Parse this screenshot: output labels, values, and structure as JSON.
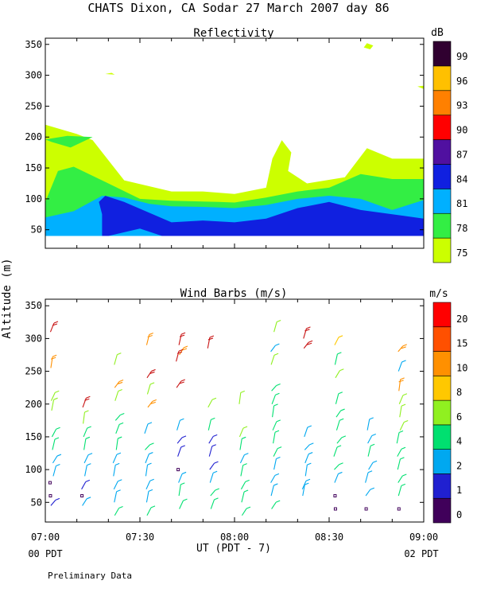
{
  "page": {
    "title": "CHATS Dixon, CA   Sodar   27 March 2007   day  86",
    "shared_ylabel": "Altitude (m)",
    "xlabel": "UT  (PDT - 7)",
    "start_local": "00 PDT",
    "end_local": "02 PDT",
    "footer": "Preliminary Data"
  },
  "chart_data": [
    {
      "type": "filled-contour",
      "title": "Reflectivity",
      "ylabel": "Altitude (m)",
      "xlabel": "UT  (PDT - 7)",
      "x_ticks": [
        "07:00",
        "07:30",
        "08:00",
        "08:30",
        "09:00"
      ],
      "x_range": [
        "07:00",
        "09:00"
      ],
      "ylim": [
        20,
        360
      ],
      "y_ticks": [
        50,
        100,
        150,
        200,
        250,
        300,
        350
      ],
      "colorbar": {
        "label": "dB",
        "levels": [
          75,
          78,
          81,
          84,
          87,
          90,
          93,
          96,
          99
        ],
        "colors": [
          "#ccff00",
          "#33ee44",
          "#00b0ff",
          "#1020e0",
          "#5010a0",
          "#ff0000",
          "#ff8000",
          "#ffc000",
          "#300030"
        ]
      },
      "contours": [
        {
          "level": 75,
          "color": "#ccff00",
          "points": [
            [
              "07:00",
              40
            ],
            [
              "07:00",
              220
            ],
            [
              "07:10",
              205
            ],
            [
              "07:15",
              195
            ],
            [
              "07:25",
              130
            ],
            [
              "07:40",
              112
            ],
            [
              "07:50",
              112
            ],
            [
              "08:00",
              108
            ],
            [
              "08:10",
              118
            ],
            [
              "08:12",
              165
            ],
            [
              "08:15",
              195
            ],
            [
              "08:18",
              175
            ],
            [
              "08:17",
              145
            ],
            [
              "08:23",
              125
            ],
            [
              "08:35",
              135
            ],
            [
              "08:42",
              182
            ],
            [
              "08:50",
              165
            ],
            [
              "09:00",
              165
            ],
            [
              "09:00",
              40
            ]
          ]
        },
        {
          "level": 75,
          "color": "#ccff00",
          "points": [
            [
              "08:41",
              345
            ],
            [
              "08:42",
              352
            ],
            [
              "08:44",
              348
            ],
            [
              "08:43",
              342
            ]
          ]
        },
        {
          "level": 75,
          "color": "#ccff00",
          "points": [
            [
              "08:58",
              282
            ],
            [
              "09:00",
              283
            ],
            [
              "09:00",
              278
            ]
          ]
        },
        {
          "level": 75,
          "color": "#ccff00",
          "points": [
            [
              "07:19",
              302
            ],
            [
              "07:21",
              304
            ],
            [
              "07:22",
              301
            ]
          ]
        },
        {
          "level": 78,
          "color": "#33ee44",
          "points": [
            [
              "07:00",
              40
            ],
            [
              "07:00",
              95
            ],
            [
              "07:04",
              145
            ],
            [
              "07:09",
              152
            ],
            [
              "07:20",
              125
            ],
            [
              "07:30",
              100
            ],
            [
              "07:40",
              97
            ],
            [
              "07:55",
              95
            ],
            [
              "08:00",
              94
            ],
            [
              "08:10",
              102
            ],
            [
              "08:20",
              112
            ],
            [
              "08:30",
              118
            ],
            [
              "08:40",
              140
            ],
            [
              "08:50",
              132
            ],
            [
              "09:00",
              132
            ],
            [
              "09:00",
              40
            ]
          ]
        },
        {
          "level": 78,
          "color": "#33ee44",
          "points": [
            [
              "07:00",
              196
            ],
            [
              "07:07",
              202
            ],
            [
              "07:15",
              200
            ],
            [
              "07:08",
              183
            ],
            [
              "07:02",
              192
            ]
          ]
        },
        {
          "level": 81,
          "color": "#00b0ff",
          "points": [
            [
              "07:00",
              40
            ],
            [
              "07:00",
              70
            ],
            [
              "07:09",
              80
            ],
            [
              "07:18",
              105
            ],
            [
              "07:25",
              102
            ],
            [
              "07:33",
              92
            ],
            [
              "07:40",
              88
            ],
            [
              "07:50",
              87
            ],
            [
              "08:00",
              85
            ],
            [
              "08:10",
              90
            ],
            [
              "08:20",
              100
            ],
            [
              "08:30",
              105
            ],
            [
              "08:40",
              100
            ],
            [
              "08:50",
              82
            ],
            [
              "09:00",
              98
            ],
            [
              "09:00",
              40
            ]
          ]
        },
        {
          "level": 84,
          "color": "#1020e0",
          "points": [
            [
              "07:18",
              40
            ],
            [
              "07:18",
              75
            ],
            [
              "07:17",
              95
            ],
            [
              "07:19",
              105
            ],
            [
              "07:25",
              95
            ],
            [
              "07:40",
              62
            ],
            [
              "07:50",
              65
            ],
            [
              "08:00",
              62
            ],
            [
              "08:10",
              68
            ],
            [
              "08:20",
              85
            ],
            [
              "08:30",
              95
            ],
            [
              "08:40",
              82
            ],
            [
              "08:50",
              75
            ],
            [
              "09:00",
              68
            ],
            [
              "09:00",
              40
            ],
            [
              "07:37",
              40
            ],
            [
              "07:30",
              52
            ],
            [
              "07:20",
              40
            ]
          ]
        }
      ]
    },
    {
      "type": "wind-barbs",
      "title": "Wind Barbs (m/s)",
      "ylabel": "Altitude (m)",
      "xlabel": "UT  (PDT - 7)",
      "x_ticks": [
        "07:00",
        "07:30",
        "08:00",
        "08:30",
        "09:00"
      ],
      "x_range": [
        "07:00",
        "09:00"
      ],
      "ylim": [
        20,
        360
      ],
      "y_ticks": [
        50,
        100,
        150,
        200,
        250,
        300,
        350
      ],
      "colorbar": {
        "label": "m/s",
        "levels": [
          0,
          1,
          2,
          4,
          6,
          8,
          10,
          15,
          20
        ],
        "colors": [
          "#40005a",
          "#2020d0",
          "#00a8f0",
          "#00e070",
          "#90f020",
          "#ffc800",
          "#ff9000",
          "#ff5000",
          "#ff0000"
        ]
      },
      "columns": [
        {
          "time": "07:02",
          "barbs": [
            [
              310,
              "#c81414"
            ],
            [
              255,
              "#ff9000"
            ],
            [
              205,
              "#90f020"
            ],
            [
              190,
              "#90f020"
            ],
            [
              150,
              "#00e070"
            ],
            [
              130,
              "#00e070"
            ],
            [
              110,
              "#00a8f0"
            ],
            [
              90,
              "#00a8f0"
            ],
            [
              80,
              "#40005a"
            ],
            [
              60,
              "#40005a"
            ],
            [
              45,
              "#2020d0"
            ]
          ]
        },
        {
          "time": "07:12",
          "barbs": [
            [
              195,
              "#c81414"
            ],
            [
              170,
              "#90f020"
            ],
            [
              150,
              "#00e070"
            ],
            [
              130,
              "#00e070"
            ],
            [
              110,
              "#00a8f0"
            ],
            [
              90,
              "#00a8f0"
            ],
            [
              70,
              "#2020d0"
            ],
            [
              60,
              "#40005a"
            ],
            [
              45,
              "#00a8f0"
            ]
          ]
        },
        {
          "time": "07:22",
          "barbs": [
            [
              260,
              "#90f020"
            ],
            [
              225,
              "#ff9000"
            ],
            [
              205,
              "#90f020"
            ],
            [
              175,
              "#00e070"
            ],
            [
              155,
              "#00e070"
            ],
            [
              130,
              "#00e070"
            ],
            [
              110,
              "#00a8f0"
            ],
            [
              90,
              "#00a8f0"
            ],
            [
              70,
              "#00a8f0"
            ],
            [
              50,
              "#00a8f0"
            ],
            [
              30,
              "#00e070"
            ]
          ]
        },
        {
          "time": "07:32",
          "barbs": [
            [
              290,
              "#ff9000"
            ],
            [
              240,
              "#c81414"
            ],
            [
              215,
              "#90f020"
            ],
            [
              195,
              "#ff9000"
            ],
            [
              155,
              "#00a8f0"
            ],
            [
              130,
              "#00e070"
            ],
            [
              110,
              "#00a8f0"
            ],
            [
              90,
              "#00a8f0"
            ],
            [
              70,
              "#00a8f0"
            ],
            [
              50,
              "#00a8f0"
            ],
            [
              30,
              "#00e070"
            ]
          ]
        },
        {
          "time": "07:42",
          "barbs": [
            [
              290,
              "#c81414"
            ],
            [
              275,
              "#ff9000"
            ],
            [
              265,
              "#c81414"
            ],
            [
              225,
              "#c81414"
            ],
            [
              160,
              "#00a8f0"
            ],
            [
              140,
              "#2020d0"
            ],
            [
              120,
              "#2020d0"
            ],
            [
              100,
              "#40005a"
            ],
            [
              80,
              "#00a8f0"
            ],
            [
              60,
              "#00e070"
            ],
            [
              40,
              "#00e070"
            ]
          ]
        },
        {
          "time": "07:52",
          "barbs": [
            [
              285,
              "#c81414"
            ],
            [
              195,
              "#90f020"
            ],
            [
              160,
              "#00e070"
            ],
            [
              140,
              "#2020d0"
            ],
            [
              120,
              "#2020d0"
            ],
            [
              100,
              "#2020d0"
            ],
            [
              80,
              "#00a8f0"
            ],
            [
              60,
              "#00e070"
            ],
            [
              40,
              "#00e070"
            ]
          ]
        },
        {
          "time": "08:02",
          "barbs": [
            [
              200,
              "#90f020"
            ],
            [
              150,
              "#90f020"
            ],
            [
              130,
              "#00e070"
            ],
            [
              110,
              "#00a8f0"
            ],
            [
              90,
              "#00e070"
            ],
            [
              70,
              "#00e070"
            ],
            [
              50,
              "#00e070"
            ],
            [
              30,
              "#00e070"
            ]
          ]
        },
        {
          "time": "08:12",
          "barbs": [
            [
              310,
              "#90f020"
            ],
            [
              280,
              "#00a8f0"
            ],
            [
              260,
              "#90f020"
            ],
            [
              220,
              "#00e070"
            ],
            [
              200,
              "#00e070"
            ],
            [
              180,
              "#00e070"
            ],
            [
              160,
              "#00e070"
            ],
            [
              140,
              "#00e070"
            ],
            [
              120,
              "#00e070"
            ],
            [
              100,
              "#00a8f0"
            ],
            [
              80,
              "#00a8f0"
            ],
            [
              60,
              "#00a8f0"
            ],
            [
              40,
              "#00e070"
            ]
          ]
        },
        {
          "time": "08:22",
          "barbs": [
            [
              300,
              "#c81414"
            ],
            [
              285,
              "#c81414"
            ],
            [
              150,
              "#00a8f0"
            ],
            [
              130,
              "#00a8f0"
            ],
            [
              110,
              "#00a8f0"
            ],
            [
              90,
              "#00a8f0"
            ],
            [
              70,
              "#00a8f0"
            ],
            [
              60,
              "#00a8f0"
            ]
          ]
        },
        {
          "time": "08:32",
          "barbs": [
            [
              290,
              "#ffc800"
            ],
            [
              260,
              "#00e070"
            ],
            [
              240,
              "#90f020"
            ],
            [
              200,
              "#00e070"
            ],
            [
              180,
              "#00e070"
            ],
            [
              160,
              "#00e070"
            ],
            [
              140,
              "#00e070"
            ],
            [
              120,
              "#00e070"
            ],
            [
              100,
              "#00e070"
            ],
            [
              80,
              "#00a8f0"
            ],
            [
              60,
              "#40005a"
            ],
            [
              40,
              "#40005a"
            ]
          ]
        },
        {
          "time": "08:42",
          "barbs": [
            [
              160,
              "#00a8f0"
            ],
            [
              140,
              "#00a8f0"
            ],
            [
              120,
              "#00e070"
            ],
            [
              100,
              "#00a8f0"
            ],
            [
              80,
              "#00a8f0"
            ],
            [
              60,
              "#00a8f0"
            ],
            [
              40,
              "#40005a"
            ]
          ]
        },
        {
          "time": "08:52",
          "barbs": [
            [
              280,
              "#ff9000"
            ],
            [
              250,
              "#00a8f0"
            ],
            [
              220,
              "#ff9000"
            ],
            [
              200,
              "#90f020"
            ],
            [
              180,
              "#90f020"
            ],
            [
              160,
              "#90f020"
            ],
            [
              140,
              "#00e070"
            ],
            [
              120,
              "#00e070"
            ],
            [
              100,
              "#00e070"
            ],
            [
              80,
              "#00e070"
            ],
            [
              60,
              "#00e070"
            ],
            [
              40,
              "#40005a"
            ]
          ]
        }
      ]
    }
  ]
}
